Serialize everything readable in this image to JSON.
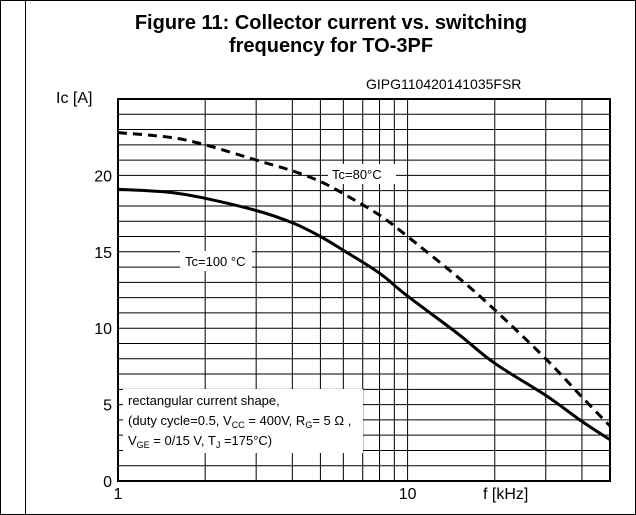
{
  "chart_data": {
    "type": "line",
    "title_line1": "Figure 11: Collector current vs. switching",
    "title_line2": "frequency for TO-3PF",
    "code": "GIPG110420141035FSR",
    "ylabel": "Ic [A]",
    "xlabel": "f [kHz]",
    "x_scale": "log",
    "xlim": [
      1,
      50
    ],
    "ylim": [
      0,
      25
    ],
    "x_tick_labels": [
      "1",
      "10"
    ],
    "y_tick_labels": [
      "0",
      "5",
      "10",
      "15",
      "20"
    ],
    "grid": true,
    "series": [
      {
        "name": "Tc=80°C",
        "style": "dashed",
        "x": [
          1,
          1.5,
          2,
          3,
          4,
          5,
          6,
          8,
          10,
          15,
          20,
          30,
          40,
          50
        ],
        "y": [
          22.8,
          22.5,
          22.0,
          21.0,
          20.3,
          19.6,
          18.8,
          17.4,
          16.0,
          13.3,
          11.2,
          8.0,
          5.5,
          3.6
        ]
      },
      {
        "name": "Tc=100 °C",
        "style": "solid",
        "x": [
          1,
          1.5,
          2,
          3,
          4,
          5,
          6,
          8,
          10,
          15,
          20,
          30,
          40,
          50
        ],
        "y": [
          19.1,
          18.9,
          18.5,
          17.7,
          16.9,
          16.0,
          15.1,
          13.6,
          12.1,
          9.6,
          7.7,
          5.6,
          3.9,
          2.7
        ]
      }
    ],
    "annotation_lines": [
      "rectangular current shape,",
      "(duty cycle=0.5, V_CC = 400V, R_G= 5 Ω ,",
      "V_GE = 0/15 V, T_J =175°C)"
    ]
  }
}
